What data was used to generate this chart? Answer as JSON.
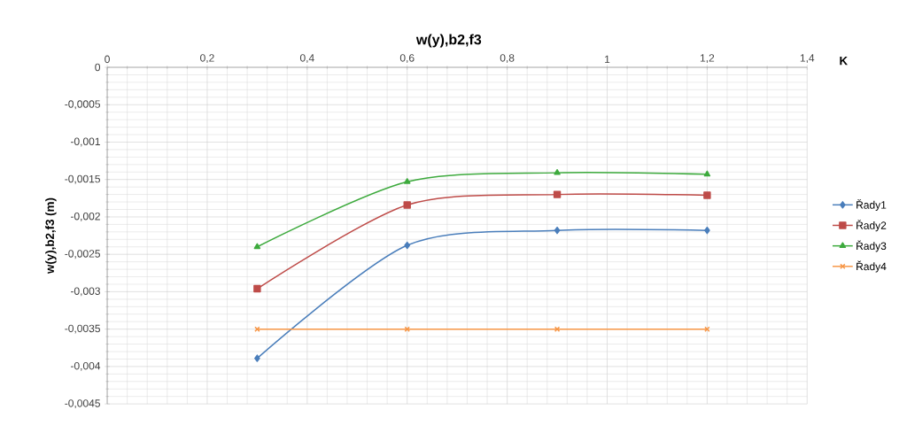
{
  "chart_data": {
    "type": "line",
    "title": "w(y),b2,f3",
    "xlabel": "K",
    "ylabel": "w(y),b2,f3 (m)",
    "x": [
      0.3,
      0.6,
      0.9,
      1.2
    ],
    "series": [
      {
        "name": "Řady1",
        "color": "#4a7ebb",
        "marker": "diamond",
        "values": [
          -0.00389,
          -0.00238,
          -0.00218,
          -0.00218
        ]
      },
      {
        "name": "Řady2",
        "color": "#be4b48",
        "marker": "square",
        "values": [
          -0.00296,
          -0.00184,
          -0.0017,
          -0.00171
        ]
      },
      {
        "name": "Řady3",
        "color": "#3daa3d",
        "marker": "triangle",
        "values": [
          -0.0024,
          -0.00153,
          -0.00141,
          -0.00143
        ]
      },
      {
        "name": "Řady4",
        "color": "#f79646",
        "marker": "cross",
        "values": [
          -0.0035,
          -0.0035,
          -0.0035,
          -0.0035
        ]
      }
    ],
    "xlim": [
      0,
      1.4
    ],
    "xticks": [
      0,
      {
        "value": 0.2,
        "label": "0,2"
      },
      {
        "value": 0.4,
        "label": "0,4"
      },
      {
        "value": 0.6,
        "label": "0,6"
      },
      {
        "value": 0.8,
        "label": "0,8"
      },
      1,
      {
        "value": 1.2,
        "label": "1,2"
      },
      {
        "value": 1.4,
        "label": "1,4"
      }
    ],
    "ylim": [
      -0.0045,
      0
    ],
    "yticks": [
      0,
      {
        "value": -0.0005,
        "label": "-0,0005"
      },
      {
        "value": -0.001,
        "label": "-0,001"
      },
      {
        "value": -0.0015,
        "label": "-0,0015"
      },
      {
        "value": -0.002,
        "label": "-0,002"
      },
      {
        "value": -0.0025,
        "label": "-0,0025"
      },
      {
        "value": -0.003,
        "label": "-0,003"
      },
      {
        "value": -0.0035,
        "label": "-0,0035"
      },
      {
        "value": -0.004,
        "label": "-0,004"
      },
      {
        "value": -0.0045,
        "label": "-0,0045"
      }
    ],
    "grid": true,
    "legend": "right",
    "line_style": "solid"
  }
}
